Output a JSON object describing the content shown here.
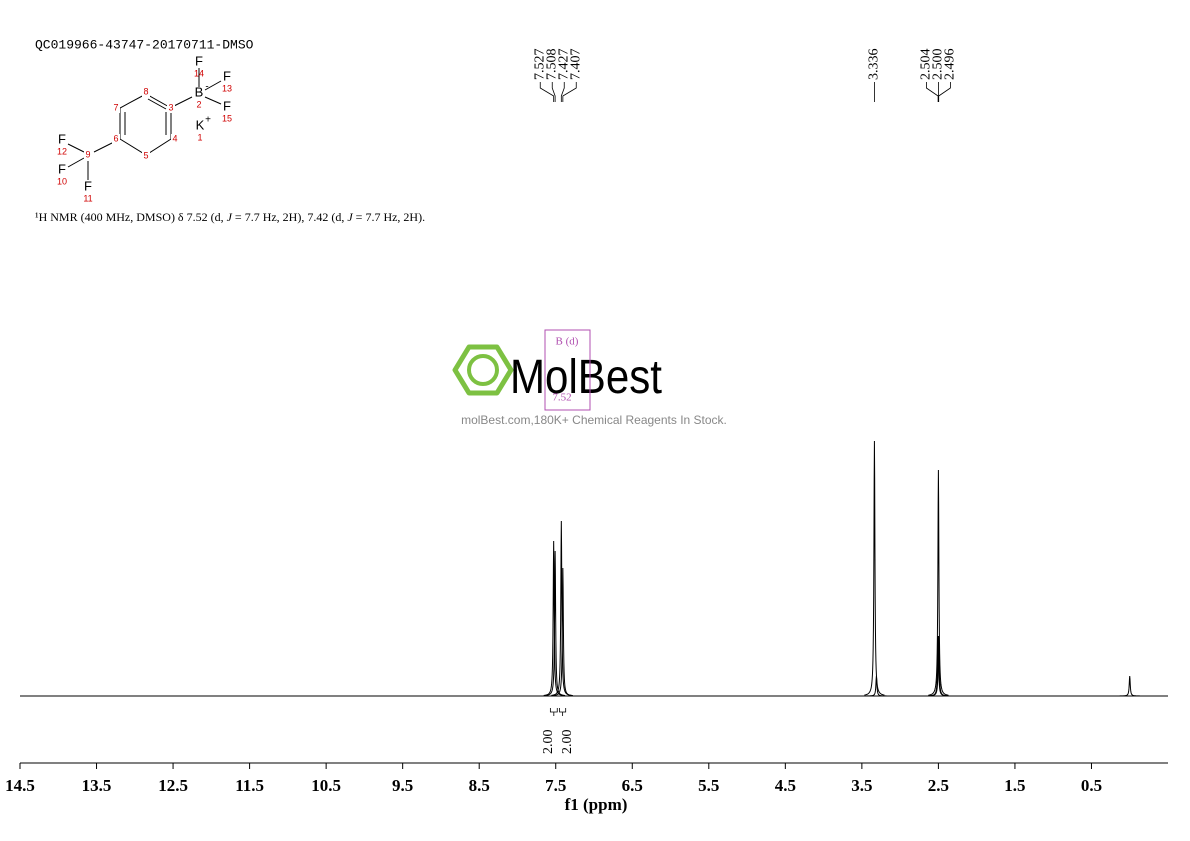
{
  "chart_data": {
    "type": "spectrum",
    "title": "QC019966-43747-20170711-DMSO",
    "description": [
      "¹H NMR (400 MHz, DMSO) δ 7.52 (d, ",
      "J",
      " = 7.7 Hz, 2H), 7.42 (d, ",
      "J",
      " = 7.7 Hz, 2H)."
    ],
    "x": [
      7.527,
      7.508,
      7.427,
      7.407,
      3.336,
      3.31,
      2.504,
      2.5,
      2.496,
      0.0
    ],
    "values": [
      155,
      145,
      175,
      128,
      255,
      20,
      60,
      226,
      60,
      20
    ],
    "x_labels": [
      "7.527",
      "7.508",
      "7.427",
      "7.407",
      "3.336",
      null,
      "2.504",
      "2.500",
      "2.496",
      null
    ],
    "color": "#000000",
    "xlim": [
      14.5,
      -0.5
    ],
    "ylim": [
      0,
      260
    ],
    "xticks": [
      14.5,
      13.5,
      12.5,
      11.5,
      10.5,
      9.5,
      8.5,
      7.5,
      6.5,
      5.5,
      4.5,
      3.5,
      2.5,
      1.5,
      0.5
    ],
    "xlabel": "f1 (ppm)",
    "integrals": {
      "ranges": [
        [
          7.57,
          7.48
        ],
        [
          7.45,
          7.37
        ]
      ],
      "values": [
        2,
        2
      ],
      "value_labels": [
        "2.00",
        "2.00"
      ]
    },
    "multiplet": {
      "label": "B (d)",
      "shift": "7.52"
    }
  },
  "structure": {
    "atoms": [
      {
        "symbol": "F",
        "number": "14"
      },
      {
        "symbol": "B",
        "charge": "-",
        "number": "2"
      },
      {
        "symbol": "F",
        "number": "13"
      },
      {
        "symbol": "F",
        "number": "15"
      },
      {
        "symbol": "K",
        "charge": "+",
        "number": "1"
      },
      {
        "number": "3"
      },
      {
        "number": "4"
      },
      {
        "number": "5"
      },
      {
        "number": "6"
      },
      {
        "number": "7"
      },
      {
        "number": "8"
      },
      {
        "number": "9"
      },
      {
        "symbol": "F",
        "number": "12"
      },
      {
        "symbol": "F",
        "number": "10"
      },
      {
        "symbol": "F",
        "number": "11"
      }
    ]
  },
  "watermark": {
    "logo": "MolBest",
    "tagline": "molBest.com,180K+ Chemical Reagents In Stock."
  }
}
